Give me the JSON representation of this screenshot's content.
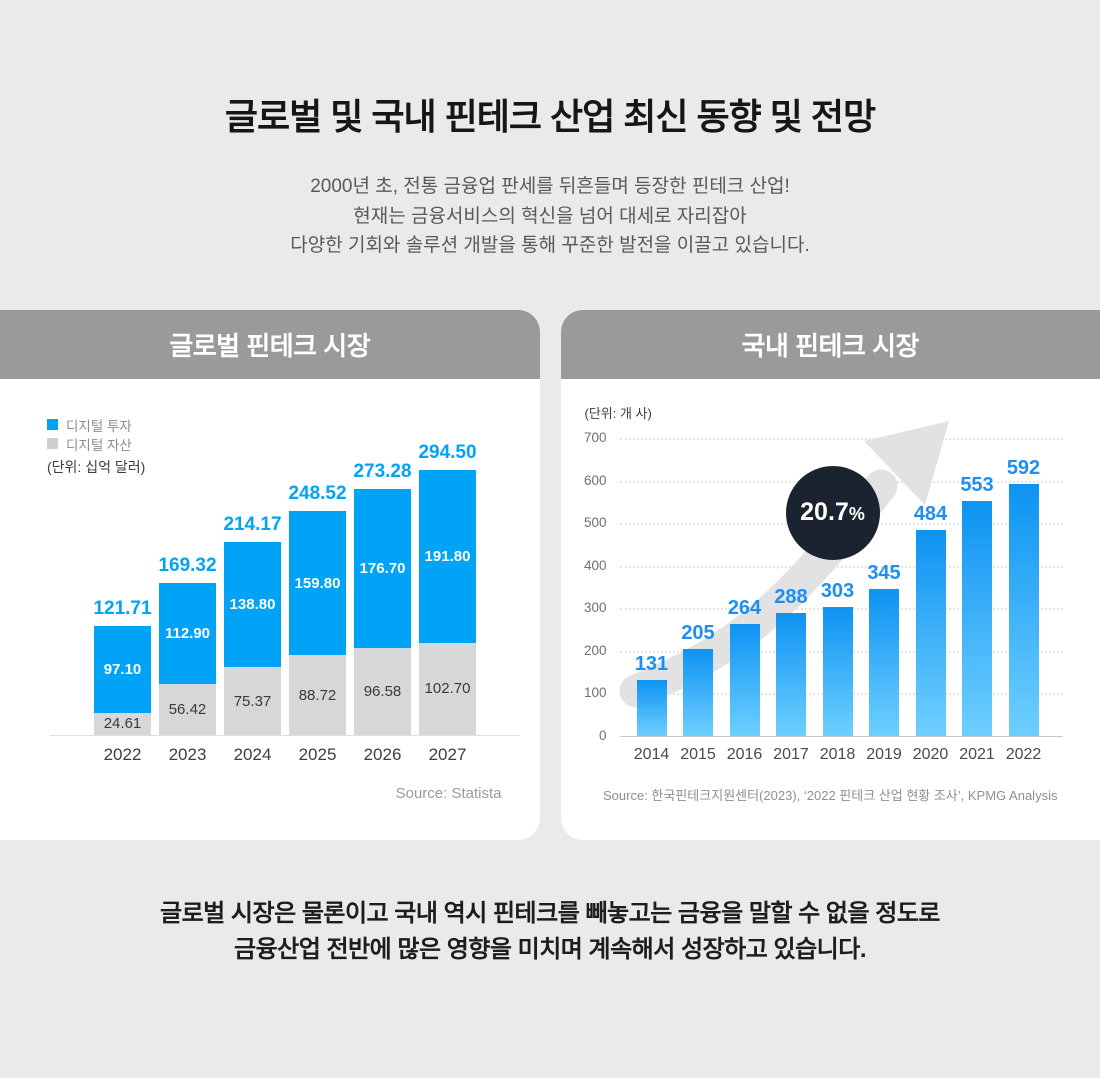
{
  "page": {
    "title": "글로벌 및 국내 핀테크 산업 최신 동향 및 전망",
    "subtitle_lines": [
      "2000년 초, 전통 금융업 판세를 뒤흔들며 등장한 핀테크 산업!",
      "현재는 금융서비스의 혁신을 넘어 대세로 자리잡아",
      "다양한 기회와 솔루션 개발을 통해 꾸준한 발전을 이끌고 있습니다."
    ],
    "footer_lines": [
      "글로벌 시장은 물론이고 국내 역시 핀테크를 빼놓고는 금융을 말할 수 없을 정도로",
      "금융산업 전반에 많은 영향을 미치며 계속해서 성장하고 있습니다."
    ]
  },
  "colors": {
    "page_background": "#e9eaeb",
    "card_header_gray": "#9a9a9a",
    "accent_blue": "#00a3f5",
    "asset_gray": "#d6d7d9",
    "korea_label_blue": "#1d8ff3",
    "korea_bar_gradient_top": "#0d93f2",
    "korea_bar_gradient_bottom": "#6ecfff",
    "badge_dark": "#1b2330",
    "arrow_gray": "#e2e2e2"
  },
  "chart_data": [
    {
      "type": "bar",
      "stacked": true,
      "title": "글로벌 핀테크 시장",
      "unit_label": "(단위: 십억 달러)",
      "legend_position": "top-left",
      "grid": false,
      "categories": [
        "2022",
        "2023",
        "2024",
        "2025",
        "2026",
        "2027"
      ],
      "series": [
        {
          "name": "디지털 투자",
          "color": "#00a3f5",
          "values": [
            "97.10",
            "112.90",
            "138.80",
            "159.80",
            "176.70",
            "191.80"
          ]
        },
        {
          "name": "디지털 자산",
          "color": "#d6d7d9",
          "values": [
            "24.61",
            "56.42",
            "75.37",
            "88.72",
            "96.58",
            "102.70"
          ]
        }
      ],
      "totals": [
        "121.71",
        "169.32",
        "214.17",
        "248.52",
        "273.28",
        "294.50"
      ],
      "ylim": [
        0,
        300
      ],
      "source": "Source: Statista"
    },
    {
      "type": "bar",
      "stacked": false,
      "title": "국내 핀테크 시장",
      "unit_label": "(단위: 개 사)",
      "grid": "dotted-horizontal",
      "categories": [
        "2014",
        "2015",
        "2016",
        "2017",
        "2018",
        "2019",
        "2020",
        "2021",
        "2022"
      ],
      "values": [
        131,
        205,
        264,
        288,
        303,
        345,
        484,
        553,
        592
      ],
      "yticks": [
        700,
        600,
        500,
        400,
        300,
        200,
        100,
        0
      ],
      "ylim": [
        0,
        700
      ],
      "badge_value": "20.7",
      "badge_suffix": "%",
      "annotation": "growth-arrow",
      "source": "Source: 한국핀테크지원센터(2023), ‘2022 핀테크 산업 현황 조사’, KPMG Analysis"
    }
  ]
}
